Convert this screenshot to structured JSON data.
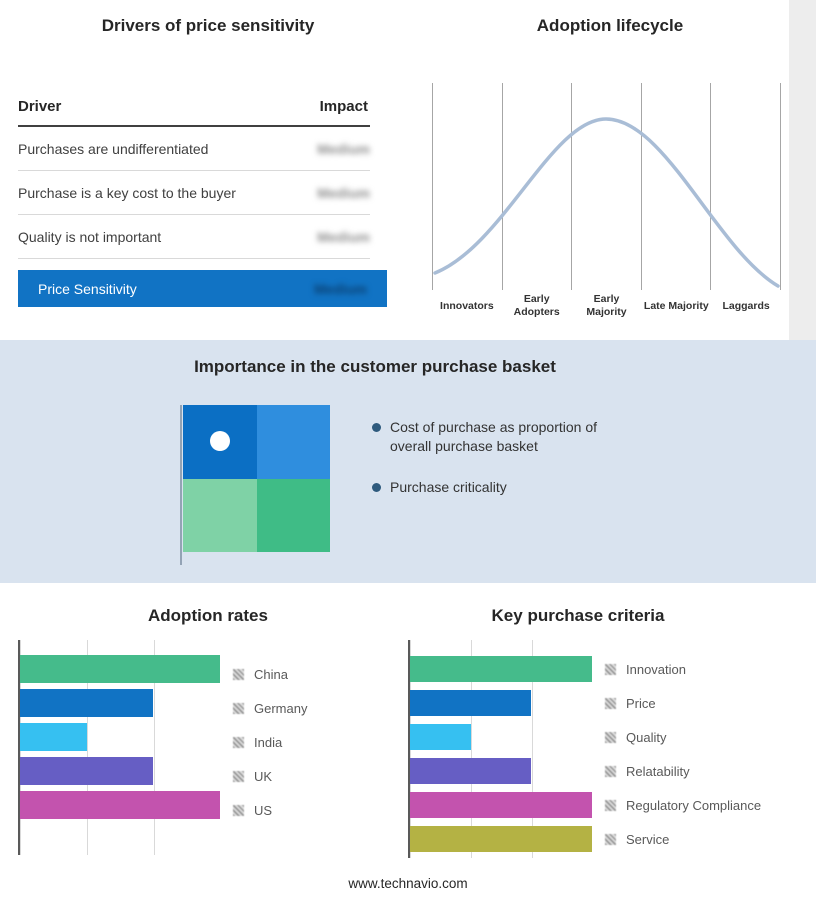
{
  "page": {
    "footer_url": "www.technavio.com"
  },
  "colors": {
    "highlight_blue": "#1173c4",
    "curve": "#a9bdd6",
    "band_bg": "#d9e3ef"
  },
  "drivers": {
    "title": "Drivers of price sensitivity",
    "header": {
      "driver": "Driver",
      "impact": "Impact"
    },
    "rows": [
      {
        "driver": "Purchases are undifferentiated",
        "impact": "Medium",
        "impact_blurred": true
      },
      {
        "driver": "Purchase is a key cost to the buyer",
        "impact": "Medium",
        "impact_blurred": true
      },
      {
        "driver": "Quality is not important",
        "impact": "Medium",
        "impact_blurred": true
      }
    ],
    "highlight": {
      "driver": "Price Sensitivity",
      "impact": "Medium",
      "impact_blurred": true
    }
  },
  "basket": {
    "title": "Importance in the customer purchase basket",
    "bullets": [
      "Cost of purchase as proportion of overall purchase basket",
      "Purchase criticality"
    ],
    "quadrants": {
      "top_left": "#0b6fc4",
      "top_right": "#2f8ede",
      "bottom_left": "#7fd2a6",
      "bottom_right": "#3fbc86"
    },
    "marker": {
      "shape": "circle",
      "color": "#ffffff",
      "position": "top-left quadrant"
    }
  },
  "chart_data": [
    {
      "type": "line",
      "title": "Adoption lifecycle",
      "shape": "bell curve",
      "x_categories": [
        "Innovators",
        "Early Adopters",
        "Early Majority",
        "Late Majority",
        "Laggards"
      ],
      "peak_category": "Early Majority",
      "grid": true,
      "legend_position": "none"
    },
    {
      "type": "bar",
      "title": "Adoption rates",
      "orientation": "horizontal",
      "categories": [
        "China",
        "Germany",
        "India",
        "UK",
        "US"
      ],
      "values": [
        3,
        2,
        1,
        2,
        3
      ],
      "xlim": [
        0,
        3
      ],
      "colors": [
        "#45bb8b",
        "#1173c4",
        "#36c0f1",
        "#665ec4",
        "#c353ae"
      ],
      "grid": true,
      "legend_position": "right",
      "legend_marker": "hatched-square"
    },
    {
      "type": "bar",
      "title": "Key purchase criteria",
      "orientation": "horizontal",
      "categories": [
        "Innovation",
        "Price",
        "Quality",
        "Relatability",
        "Regulatory Compliance",
        "Service"
      ],
      "values": [
        3,
        2,
        1,
        2,
        3,
        3
      ],
      "xlim": [
        0,
        3
      ],
      "colors": [
        "#45bb8b",
        "#1173c4",
        "#36c0f1",
        "#665ec4",
        "#c353ae",
        "#b4b244"
      ],
      "grid": true,
      "legend_position": "right",
      "legend_marker": "hatched-square"
    }
  ]
}
